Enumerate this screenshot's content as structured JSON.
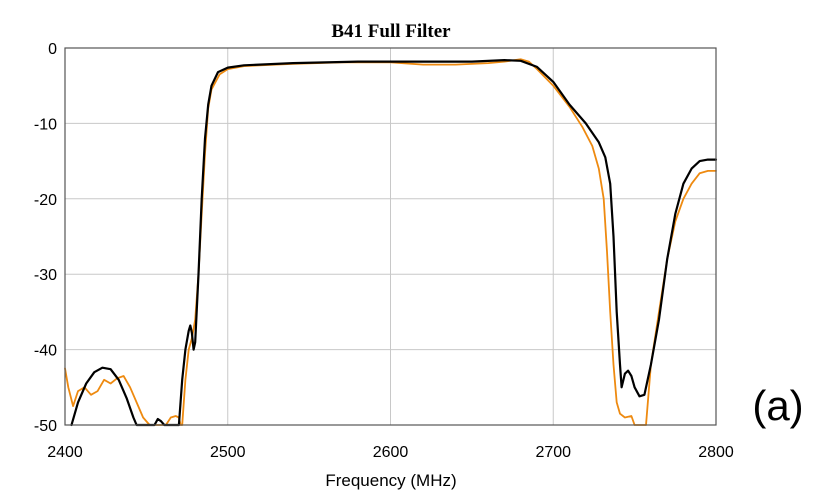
{
  "chart_data": {
    "type": "line",
    "title": "B41 Full Filter",
    "xlabel": "Frequency (MHz)",
    "ylabel": "",
    "xlim": [
      2400,
      2800
    ],
    "ylim": [
      -50,
      0
    ],
    "x_ticks": [
      2400,
      2500,
      2600,
      2700,
      2800
    ],
    "y_ticks": [
      0,
      -10,
      -20,
      -30,
      -40,
      -50
    ],
    "grid": true,
    "legend": "none",
    "annotation": "(a)",
    "series": [
      {
        "color": "#000000",
        "points": [
          [
            2404,
            -50
          ],
          [
            2408,
            -47
          ],
          [
            2413,
            -44.5
          ],
          [
            2418,
            -43
          ],
          [
            2423,
            -42.4
          ],
          [
            2428,
            -42.6
          ],
          [
            2433,
            -44
          ],
          [
            2438,
            -46.5
          ],
          [
            2442,
            -49
          ],
          [
            2444,
            -50
          ],
          [
            2455,
            -50
          ],
          [
            2457,
            -49.2
          ],
          [
            2459,
            -49.5
          ],
          [
            2461,
            -50
          ],
          [
            2470,
            -50
          ],
          [
            2472,
            -44
          ],
          [
            2474,
            -40
          ],
          [
            2476,
            -37.5
          ],
          [
            2477,
            -36.8
          ],
          [
            2478,
            -37.8
          ],
          [
            2479,
            -40
          ],
          [
            2480,
            -39
          ],
          [
            2482,
            -30
          ],
          [
            2484,
            -20
          ],
          [
            2486,
            -12
          ],
          [
            2488,
            -7.5
          ],
          [
            2490,
            -5
          ],
          [
            2494,
            -3.2
          ],
          [
            2500,
            -2.6
          ],
          [
            2510,
            -2.3
          ],
          [
            2540,
            -2.0
          ],
          [
            2580,
            -1.8
          ],
          [
            2620,
            -1.8
          ],
          [
            2650,
            -1.8
          ],
          [
            2670,
            -1.6
          ],
          [
            2680,
            -1.7
          ],
          [
            2690,
            -2.5
          ],
          [
            2700,
            -4.5
          ],
          [
            2710,
            -7.5
          ],
          [
            2720,
            -10
          ],
          [
            2728,
            -12.5
          ],
          [
            2732,
            -14.5
          ],
          [
            2735,
            -18
          ],
          [
            2737,
            -25
          ],
          [
            2739,
            -35
          ],
          [
            2741,
            -42
          ],
          [
            2742,
            -45
          ],
          [
            2744,
            -43.2
          ],
          [
            2746,
            -42.8
          ],
          [
            2748,
            -43.5
          ],
          [
            2750,
            -45
          ],
          [
            2753,
            -46.2
          ],
          [
            2756,
            -46
          ],
          [
            2760,
            -42
          ],
          [
            2765,
            -36
          ],
          [
            2770,
            -28
          ],
          [
            2775,
            -22
          ],
          [
            2780,
            -18
          ],
          [
            2785,
            -16
          ],
          [
            2790,
            -15
          ],
          [
            2795,
            -14.8
          ],
          [
            2800,
            -14.8
          ]
        ]
      },
      {
        "color": "#ee8a10",
        "points": [
          [
            2400,
            -42.5
          ],
          [
            2402,
            -45
          ],
          [
            2405,
            -47.5
          ],
          [
            2408,
            -45.5
          ],
          [
            2412,
            -45
          ],
          [
            2416,
            -46
          ],
          [
            2420,
            -45.5
          ],
          [
            2424,
            -44
          ],
          [
            2428,
            -44.5
          ],
          [
            2432,
            -43.8
          ],
          [
            2436,
            -43.5
          ],
          [
            2440,
            -45
          ],
          [
            2444,
            -47
          ],
          [
            2448,
            -49
          ],
          [
            2452,
            -50
          ],
          [
            2462,
            -50
          ],
          [
            2465,
            -49
          ],
          [
            2468,
            -48.8
          ],
          [
            2470,
            -49
          ],
          [
            2471,
            -50
          ],
          [
            2472,
            -50
          ],
          [
            2474,
            -44
          ],
          [
            2476,
            -40
          ],
          [
            2478,
            -38.5
          ],
          [
            2480,
            -36
          ],
          [
            2482,
            -30
          ],
          [
            2484,
            -22
          ],
          [
            2486,
            -14
          ],
          [
            2488,
            -8
          ],
          [
            2490,
            -5.5
          ],
          [
            2495,
            -3.5
          ],
          [
            2500,
            -2.8
          ],
          [
            2510,
            -2.4
          ],
          [
            2540,
            -2.1
          ],
          [
            2570,
            -1.9
          ],
          [
            2600,
            -1.9
          ],
          [
            2620,
            -2.2
          ],
          [
            2640,
            -2.2
          ],
          [
            2660,
            -2.0
          ],
          [
            2670,
            -1.8
          ],
          [
            2680,
            -1.5
          ],
          [
            2685,
            -1.8
          ],
          [
            2690,
            -2.8
          ],
          [
            2700,
            -5
          ],
          [
            2710,
            -7.8
          ],
          [
            2718,
            -10.5
          ],
          [
            2724,
            -13
          ],
          [
            2728,
            -16
          ],
          [
            2731,
            -20
          ],
          [
            2733,
            -27
          ],
          [
            2735,
            -35
          ],
          [
            2737,
            -42
          ],
          [
            2739,
            -47
          ],
          [
            2741,
            -48.5
          ],
          [
            2744,
            -49
          ],
          [
            2748,
            -48.8
          ],
          [
            2750,
            -50
          ],
          [
            2757,
            -50
          ],
          [
            2760,
            -42
          ],
          [
            2765,
            -35
          ],
          [
            2770,
            -28
          ],
          [
            2775,
            -23
          ],
          [
            2780,
            -20
          ],
          [
            2785,
            -18
          ],
          [
            2790,
            -16.6
          ],
          [
            2795,
            -16.3
          ],
          [
            2800,
            -16.3
          ]
        ]
      }
    ]
  }
}
